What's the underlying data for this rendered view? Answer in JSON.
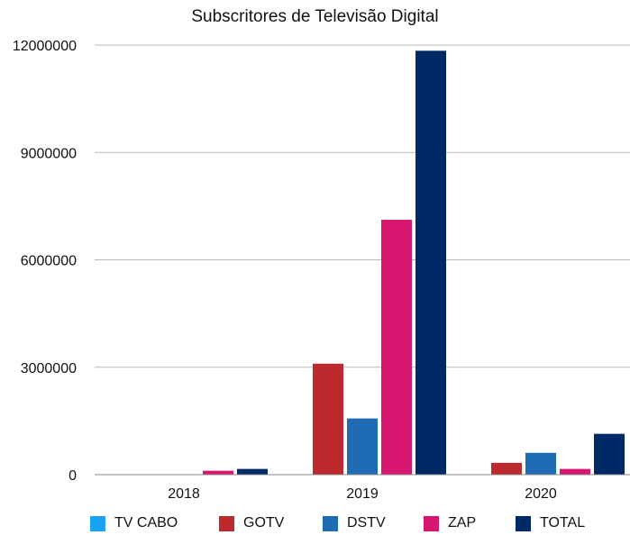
{
  "chart_data": {
    "type": "bar",
    "title": "Subscritores de Televisão Digital",
    "xlabel": "",
    "ylabel": "",
    "categories": [
      "2018",
      "2019",
      "2020"
    ],
    "ylim": [
      0,
      12000000
    ],
    "yticks": [
      "0",
      "3000000",
      "6000000",
      "9000000",
      "12000000"
    ],
    "grid": true,
    "legend_position": "bottom",
    "series": [
      {
        "name": "TV CABO",
        "color": "#1aa3f5",
        "values": [
          0,
          0,
          0
        ]
      },
      {
        "name": "GOTV",
        "color": "#bd2a2e",
        "values": [
          0,
          3100000,
          330000
        ]
      },
      {
        "name": "DSTV",
        "color": "#1f6cb5",
        "values": [
          0,
          1570000,
          610000
        ]
      },
      {
        "name": "ZAP",
        "color": "#d6166f",
        "values": [
          110000,
          7120000,
          160000
        ]
      },
      {
        "name": "TOTAL",
        "color": "#002a66",
        "values": [
          160000,
          11840000,
          1140000
        ]
      }
    ]
  }
}
